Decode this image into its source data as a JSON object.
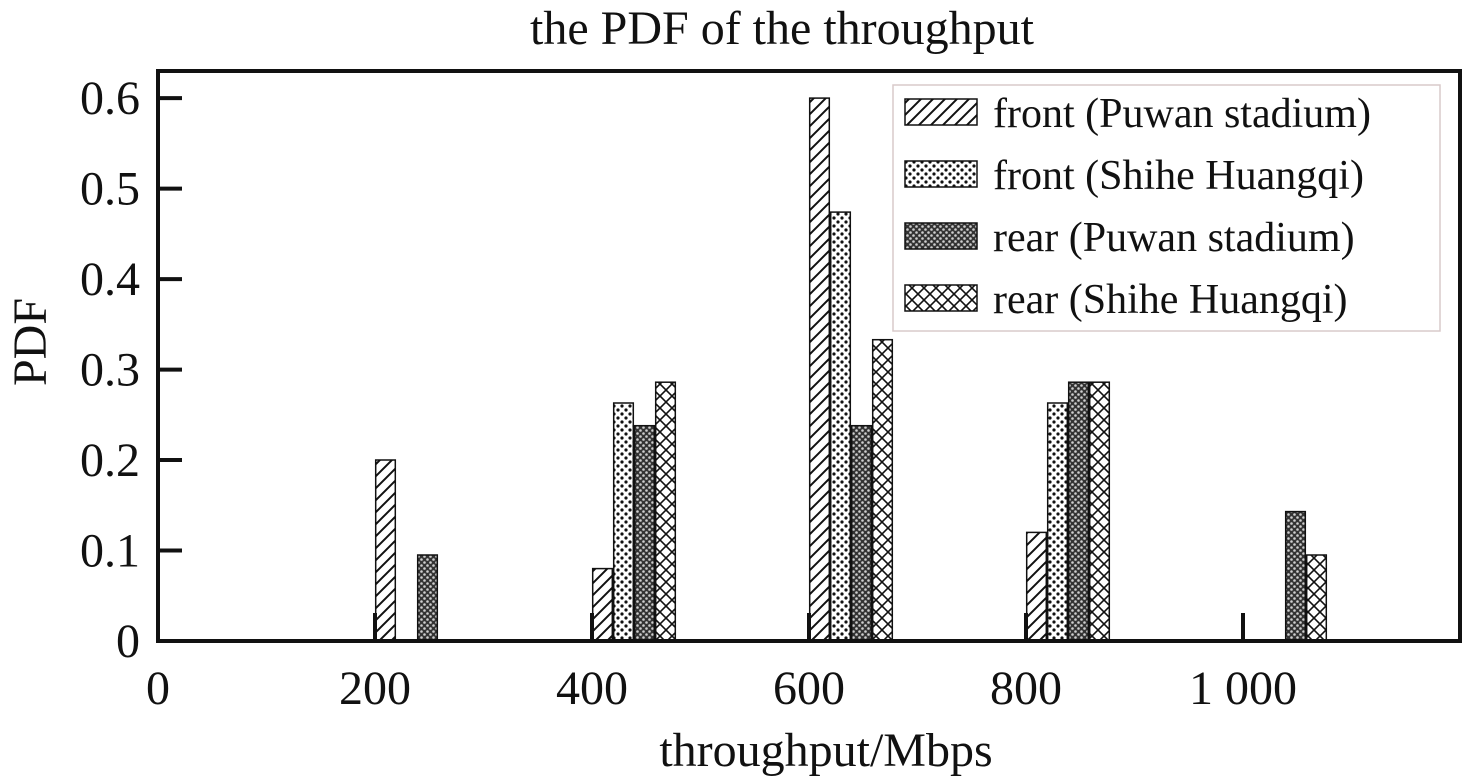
{
  "chart_data": {
    "type": "bar",
    "title": "the PDF of the throughput",
    "xlabel": "throughput/Mbps",
    "ylabel": "PDF",
    "xlim": [
      0,
      1200
    ],
    "ylim": [
      0,
      0.63
    ],
    "x_ticks": [
      0,
      200,
      400,
      600,
      800,
      1000
    ],
    "x_tick_labels": [
      "0",
      "200",
      "400",
      "600",
      "800",
      "1 000"
    ],
    "y_ticks": [
      0,
      0.1,
      0.2,
      0.3,
      0.4,
      0.5,
      0.6
    ],
    "y_tick_labels": [
      "0",
      "0.1",
      "0.2",
      "0.3",
      "0.4",
      "0.5",
      "0.6"
    ],
    "categories": [
      200,
      400,
      600,
      800,
      1000
    ],
    "legend_position": "top-right",
    "grid": false,
    "series": [
      {
        "name": "front (Puwan stadium)",
        "pattern": "diagonal-hatch",
        "values": [
          0.2,
          0.08,
          0.6,
          0.12,
          0
        ]
      },
      {
        "name": "front (Shihe Huangqi)",
        "pattern": "dots",
        "values": [
          0,
          0.263,
          0.474,
          0.263,
          0
        ]
      },
      {
        "name": "rear (Puwan stadium)",
        "pattern": "dense-dots",
        "values": [
          0.095,
          0.238,
          0.238,
          0.286,
          0.143
        ]
      },
      {
        "name": "rear (Shihe Huangqi)",
        "pattern": "cross-hatch",
        "values": [
          0,
          0.286,
          0.333,
          0.286,
          0.095
        ]
      }
    ]
  }
}
